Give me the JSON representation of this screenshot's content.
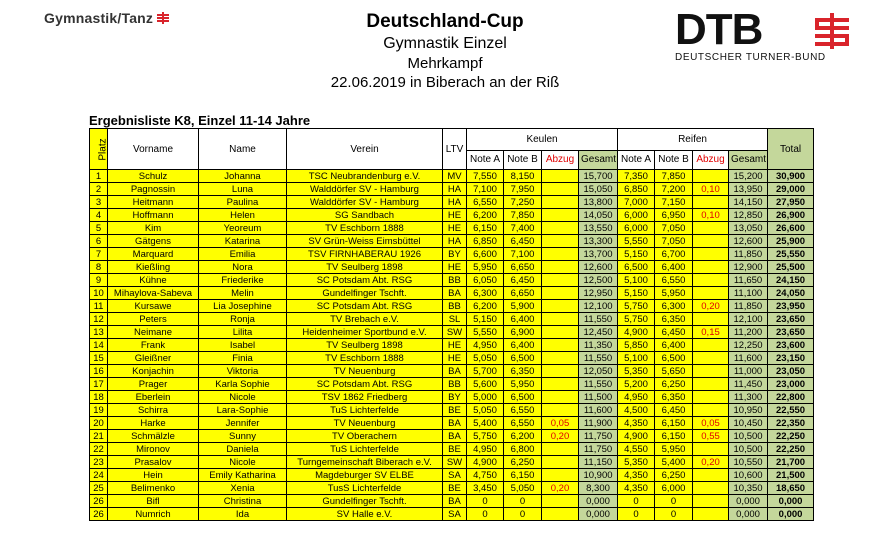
{
  "header": {
    "brand_left": "Gymnastik/Tanz",
    "title": "Deutschland-Cup",
    "subtitle": "Gymnastik Einzel",
    "event": "Mehrkampf",
    "date_place": "22.06.2019 in Biberach an der Riß",
    "brand_right": "DTB",
    "brand_right_sub": "DEUTSCHER TURNER-BUND",
    "accent_color": "#d9242b"
  },
  "list_title": "Ergebnisliste K8, Einzel 11-14 Jahre",
  "columns": {
    "platz": "Platz",
    "vorname": "Vorname",
    "name": "Name",
    "verein": "Verein",
    "ltv": "LTV",
    "keulen": "Keulen",
    "reifen": "Reifen",
    "note_a": "Note A",
    "note_b": "Note B",
    "abzug": "Abzug",
    "gesamt": "Gesamt",
    "total": "Total"
  },
  "rows": [
    {
      "platz": "1",
      "vorname": "Schulz",
      "name": "Johanna",
      "verein": "TSC Neubrandenburg e.V.",
      "ltv": "MV",
      "k_a": "7,550",
      "k_b": "8,150",
      "k_abzug": "",
      "k_ges": "15,700",
      "r_a": "7,350",
      "r_b": "7,850",
      "r_abzug": "",
      "r_ges": "15,200",
      "total": "30,900"
    },
    {
      "platz": "2",
      "vorname": "Pagnossin",
      "name": "Luna",
      "verein": "Walddörfer SV - Hamburg",
      "ltv": "HA",
      "k_a": "7,100",
      "k_b": "7,950",
      "k_abzug": "",
      "k_ges": "15,050",
      "r_a": "6,850",
      "r_b": "7,200",
      "r_abzug": "0,10",
      "r_ges": "13,950",
      "total": "29,000"
    },
    {
      "platz": "3",
      "vorname": "Heitmann",
      "name": "Paulina",
      "verein": "Walddörfer SV - Hamburg",
      "ltv": "HA",
      "k_a": "6,550",
      "k_b": "7,250",
      "k_abzug": "",
      "k_ges": "13,800",
      "r_a": "7,000",
      "r_b": "7,150",
      "r_abzug": "",
      "r_ges": "14,150",
      "total": "27,950"
    },
    {
      "platz": "4",
      "vorname": "Hoffmann",
      "name": "Helen",
      "verein": "SG Sandbach",
      "ltv": "HE",
      "k_a": "6,200",
      "k_b": "7,850",
      "k_abzug": "",
      "k_ges": "14,050",
      "r_a": "6,000",
      "r_b": "6,950",
      "r_abzug": "0,10",
      "r_ges": "12,850",
      "total": "26,900"
    },
    {
      "platz": "5",
      "vorname": "Kim",
      "name": "Yeoreum",
      "verein": "TV Eschborn 1888",
      "ltv": "HE",
      "k_a": "6,150",
      "k_b": "7,400",
      "k_abzug": "",
      "k_ges": "13,550",
      "r_a": "6,000",
      "r_b": "7,050",
      "r_abzug": "",
      "r_ges": "13,050",
      "total": "26,600"
    },
    {
      "platz": "6",
      "vorname": "Gätgens",
      "name": "Katarina",
      "verein": "SV Grün-Weiss Eimsbüttel",
      "ltv": "HA",
      "k_a": "6,850",
      "k_b": "6,450",
      "k_abzug": "",
      "k_ges": "13,300",
      "r_a": "5,550",
      "r_b": "7,050",
      "r_abzug": "",
      "r_ges": "12,600",
      "total": "25,900"
    },
    {
      "platz": "7",
      "vorname": "Marquard",
      "name": "Emilia",
      "verein": "TSV FIRNHABERAU 1926",
      "ltv": "BY",
      "k_a": "6,600",
      "k_b": "7,100",
      "k_abzug": "",
      "k_ges": "13,700",
      "r_a": "5,150",
      "r_b": "6,700",
      "r_abzug": "",
      "r_ges": "11,850",
      "total": "25,550"
    },
    {
      "platz": "8",
      "vorname": "Kießling",
      "name": "Nora",
      "verein": "TV Seulberg 1898",
      "ltv": "HE",
      "k_a": "5,950",
      "k_b": "6,650",
      "k_abzug": "",
      "k_ges": "12,600",
      "r_a": "6,500",
      "r_b": "6,400",
      "r_abzug": "",
      "r_ges": "12,900",
      "total": "25,500"
    },
    {
      "platz": "9",
      "vorname": "Kühne",
      "name": "Friederike",
      "verein": "SC Potsdam Abt. RSG",
      "ltv": "BB",
      "k_a": "6,050",
      "k_b": "6,450",
      "k_abzug": "",
      "k_ges": "12,500",
      "r_a": "5,100",
      "r_b": "6,550",
      "r_abzug": "",
      "r_ges": "11,650",
      "total": "24,150"
    },
    {
      "platz": "10",
      "vorname": "Mihaylova-Sabeva",
      "name": "Melin",
      "verein": "Gundelfinger Tschft.",
      "ltv": "BA",
      "k_a": "6,300",
      "k_b": "6,650",
      "k_abzug": "",
      "k_ges": "12,950",
      "r_a": "5,150",
      "r_b": "5,950",
      "r_abzug": "",
      "r_ges": "11,100",
      "total": "24,050"
    },
    {
      "platz": "11",
      "vorname": "Kursawe",
      "name": "Lia Josephine",
      "verein": "SC Potsdam Abt. RSG",
      "ltv": "BB",
      "k_a": "6,200",
      "k_b": "5,900",
      "k_abzug": "",
      "k_ges": "12,100",
      "r_a": "5,750",
      "r_b": "6,300",
      "r_abzug": "0,20",
      "r_ges": "11,850",
      "total": "23,950"
    },
    {
      "platz": "12",
      "vorname": "Peters",
      "name": "Ronja",
      "verein": "TV Brebach e.V.",
      "ltv": "SL",
      "k_a": "5,150",
      "k_b": "6,400",
      "k_abzug": "",
      "k_ges": "11,550",
      "r_a": "5,750",
      "r_b": "6,350",
      "r_abzug": "",
      "r_ges": "12,100",
      "total": "23,650"
    },
    {
      "platz": "13",
      "vorname": "Neimane",
      "name": "Lilita",
      "verein": "Heidenheimer Sportbund e.V.",
      "ltv": "SW",
      "k_a": "5,550",
      "k_b": "6,900",
      "k_abzug": "",
      "k_ges": "12,450",
      "r_a": "4,900",
      "r_b": "6,450",
      "r_abzug": "0,15",
      "r_ges": "11,200",
      "total": "23,650"
    },
    {
      "platz": "14",
      "vorname": "Frank",
      "name": "Isabel",
      "verein": "TV Seulberg 1898",
      "ltv": "HE",
      "k_a": "4,950",
      "k_b": "6,400",
      "k_abzug": "",
      "k_ges": "11,350",
      "r_a": "5,850",
      "r_b": "6,400",
      "r_abzug": "",
      "r_ges": "12,250",
      "total": "23,600"
    },
    {
      "platz": "15",
      "vorname": "Gleißner",
      "name": "Finia",
      "verein": "TV Eschborn 1888",
      "ltv": "HE",
      "k_a": "5,050",
      "k_b": "6,500",
      "k_abzug": "",
      "k_ges": "11,550",
      "r_a": "5,100",
      "r_b": "6,500",
      "r_abzug": "",
      "r_ges": "11,600",
      "total": "23,150"
    },
    {
      "platz": "16",
      "vorname": "Konjachin",
      "name": "Viktoria",
      "verein": "TV Neuenburg",
      "ltv": "BA",
      "k_a": "5,700",
      "k_b": "6,350",
      "k_abzug": "",
      "k_ges": "12,050",
      "r_a": "5,350",
      "r_b": "5,650",
      "r_abzug": "",
      "r_ges": "11,000",
      "total": "23,050"
    },
    {
      "platz": "17",
      "vorname": "Prager",
      "name": "Karla Sophie",
      "verein": "SC Potsdam Abt. RSG",
      "ltv": "BB",
      "k_a": "5,600",
      "k_b": "5,950",
      "k_abzug": "",
      "k_ges": "11,550",
      "r_a": "5,200",
      "r_b": "6,250",
      "r_abzug": "",
      "r_ges": "11,450",
      "total": "23,000"
    },
    {
      "platz": "18",
      "vorname": "Eberlein",
      "name": "Nicole",
      "verein": "TSV 1862 Friedberg",
      "ltv": "BY",
      "k_a": "5,000",
      "k_b": "6,500",
      "k_abzug": "",
      "k_ges": "11,500",
      "r_a": "4,950",
      "r_b": "6,350",
      "r_abzug": "",
      "r_ges": "11,300",
      "total": "22,800"
    },
    {
      "platz": "19",
      "vorname": "Schirra",
      "name": "Lara-Sophie",
      "verein": "TuS Lichterfelde",
      "ltv": "BE",
      "k_a": "5,050",
      "k_b": "6,550",
      "k_abzug": "",
      "k_ges": "11,600",
      "r_a": "4,500",
      "r_b": "6,450",
      "r_abzug": "",
      "r_ges": "10,950",
      "total": "22,550"
    },
    {
      "platz": "20",
      "vorname": "Harke",
      "name": "Jennifer",
      "verein": "TV Neuenburg",
      "ltv": "BA",
      "k_a": "5,400",
      "k_b": "6,550",
      "k_abzug": "0,05",
      "k_ges": "11,900",
      "r_a": "4,350",
      "r_b": "6,150",
      "r_abzug": "0,05",
      "r_ges": "10,450",
      "total": "22,350"
    },
    {
      "platz": "21",
      "vorname": "Schmälzle",
      "name": "Sunny",
      "verein": "TV Oberachern",
      "ltv": "BA",
      "k_a": "5,750",
      "k_b": "6,200",
      "k_abzug": "0,20",
      "k_ges": "11,750",
      "r_a": "4,900",
      "r_b": "6,150",
      "r_abzug": "0,55",
      "r_ges": "10,500",
      "total": "22,250"
    },
    {
      "platz": "22",
      "vorname": "Mironov",
      "name": "Daniela",
      "verein": "TuS Lichterfelde",
      "ltv": "BE",
      "k_a": "4,950",
      "k_b": "6,800",
      "k_abzug": "",
      "k_ges": "11,750",
      "r_a": "4,550",
      "r_b": "5,950",
      "r_abzug": "",
      "r_ges": "10,500",
      "total": "22,250"
    },
    {
      "platz": "23",
      "vorname": "Prasalov",
      "name": "Nicole",
      "verein": "Turngemeinschaft Biberach e.V.",
      "ltv": "SW",
      "k_a": "4,900",
      "k_b": "6,250",
      "k_abzug": "",
      "k_ges": "11,150",
      "r_a": "5,350",
      "r_b": "5,400",
      "r_abzug": "0,20",
      "r_ges": "10,550",
      "total": "21,700"
    },
    {
      "platz": "24",
      "vorname": "Hein",
      "name": "Emily Katharina",
      "verein": "Magdeburger SV ELBE",
      "ltv": "SA",
      "k_a": "4,750",
      "k_b": "6,150",
      "k_abzug": "",
      "k_ges": "10,900",
      "r_a": "4,350",
      "r_b": "6,250",
      "r_abzug": "",
      "r_ges": "10,600",
      "total": "21,500"
    },
    {
      "platz": "25",
      "vorname": "Belimenko",
      "name": "Xenia",
      "verein": "TusS Lichterfelde",
      "ltv": "BE",
      "k_a": "3,450",
      "k_b": "5,050",
      "k_abzug": "0,20",
      "k_ges": "8,300",
      "r_a": "4,350",
      "r_b": "6,000",
      "r_abzug": "",
      "r_ges": "10,350",
      "total": "18,650"
    },
    {
      "platz": "26",
      "vorname": "Bifl",
      "name": "Christina",
      "verein": "Gundelfinger Tschft.",
      "ltv": "BA",
      "k_a": "0",
      "k_b": "0",
      "k_abzug": "",
      "k_ges": "0,000",
      "r_a": "0",
      "r_b": "0",
      "r_abzug": "",
      "r_ges": "0,000",
      "total": "0,000"
    },
    {
      "platz": "26",
      "vorname": "Numrich",
      "name": "Ida",
      "verein": "SV Halle e.V.",
      "ltv": "SA",
      "k_a": "0",
      "k_b": "0",
      "k_abzug": "",
      "k_ges": "0,000",
      "r_a": "0",
      "r_b": "0",
      "r_abzug": "",
      "r_ges": "0,000",
      "total": "0,000"
    }
  ]
}
